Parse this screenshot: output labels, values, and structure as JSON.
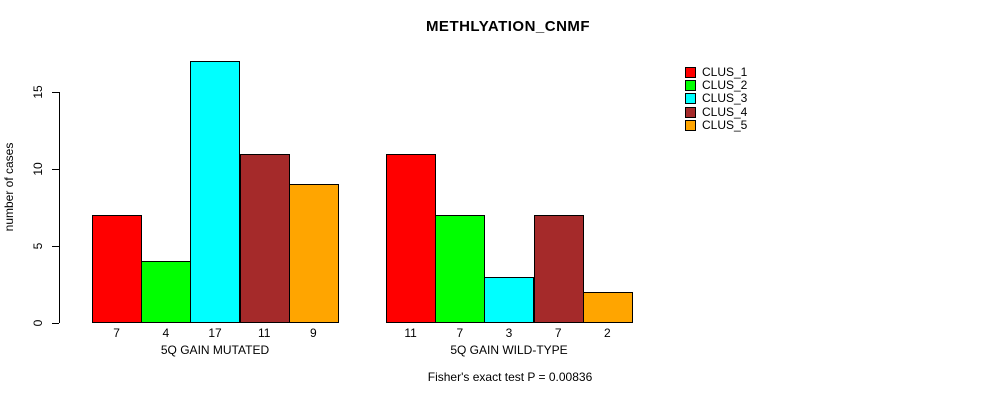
{
  "chart_data": {
    "type": "bar",
    "title": "METHLYATION_CNMF",
    "ylabel": "number of cases",
    "xlabel": "",
    "yticks": [
      0,
      5,
      10,
      15
    ],
    "ylim": [
      0,
      17
    ],
    "grid": false,
    "categories": [
      "5Q GAIN MUTATED",
      "5Q GAIN WILD-TYPE"
    ],
    "series": [
      {
        "name": "CLUS_1",
        "color": "#FF0000",
        "values": [
          7,
          11
        ]
      },
      {
        "name": "CLUS_2",
        "color": "#00FF00",
        "values": [
          4,
          7
        ]
      },
      {
        "name": "CLUS_3",
        "color": "#00FFFF",
        "values": [
          17,
          3
        ]
      },
      {
        "name": "CLUS_4",
        "color": "#A52A2A",
        "values": [
          11,
          7
        ]
      },
      {
        "name": "CLUS_5",
        "color": "#FFA500",
        "values": [
          9,
          2
        ]
      }
    ],
    "bar_value_labels": {
      "5Q GAIN MUTATED": [
        7,
        4,
        17,
        11,
        9
      ],
      "5Q GAIN WILD-TYPE": [
        11,
        7,
        3,
        7,
        2
      ]
    },
    "legend_position": "right",
    "legend": [
      "CLUS_1",
      "CLUS_2",
      "CLUS_3",
      "CLUS_4",
      "CLUS_5"
    ],
    "annotation": "Fisher's exact test P = 0.00836"
  },
  "colors": {
    "background": "#ffffff",
    "axis": "#000000",
    "text": "#000000",
    "bar_border": "#000000"
  }
}
